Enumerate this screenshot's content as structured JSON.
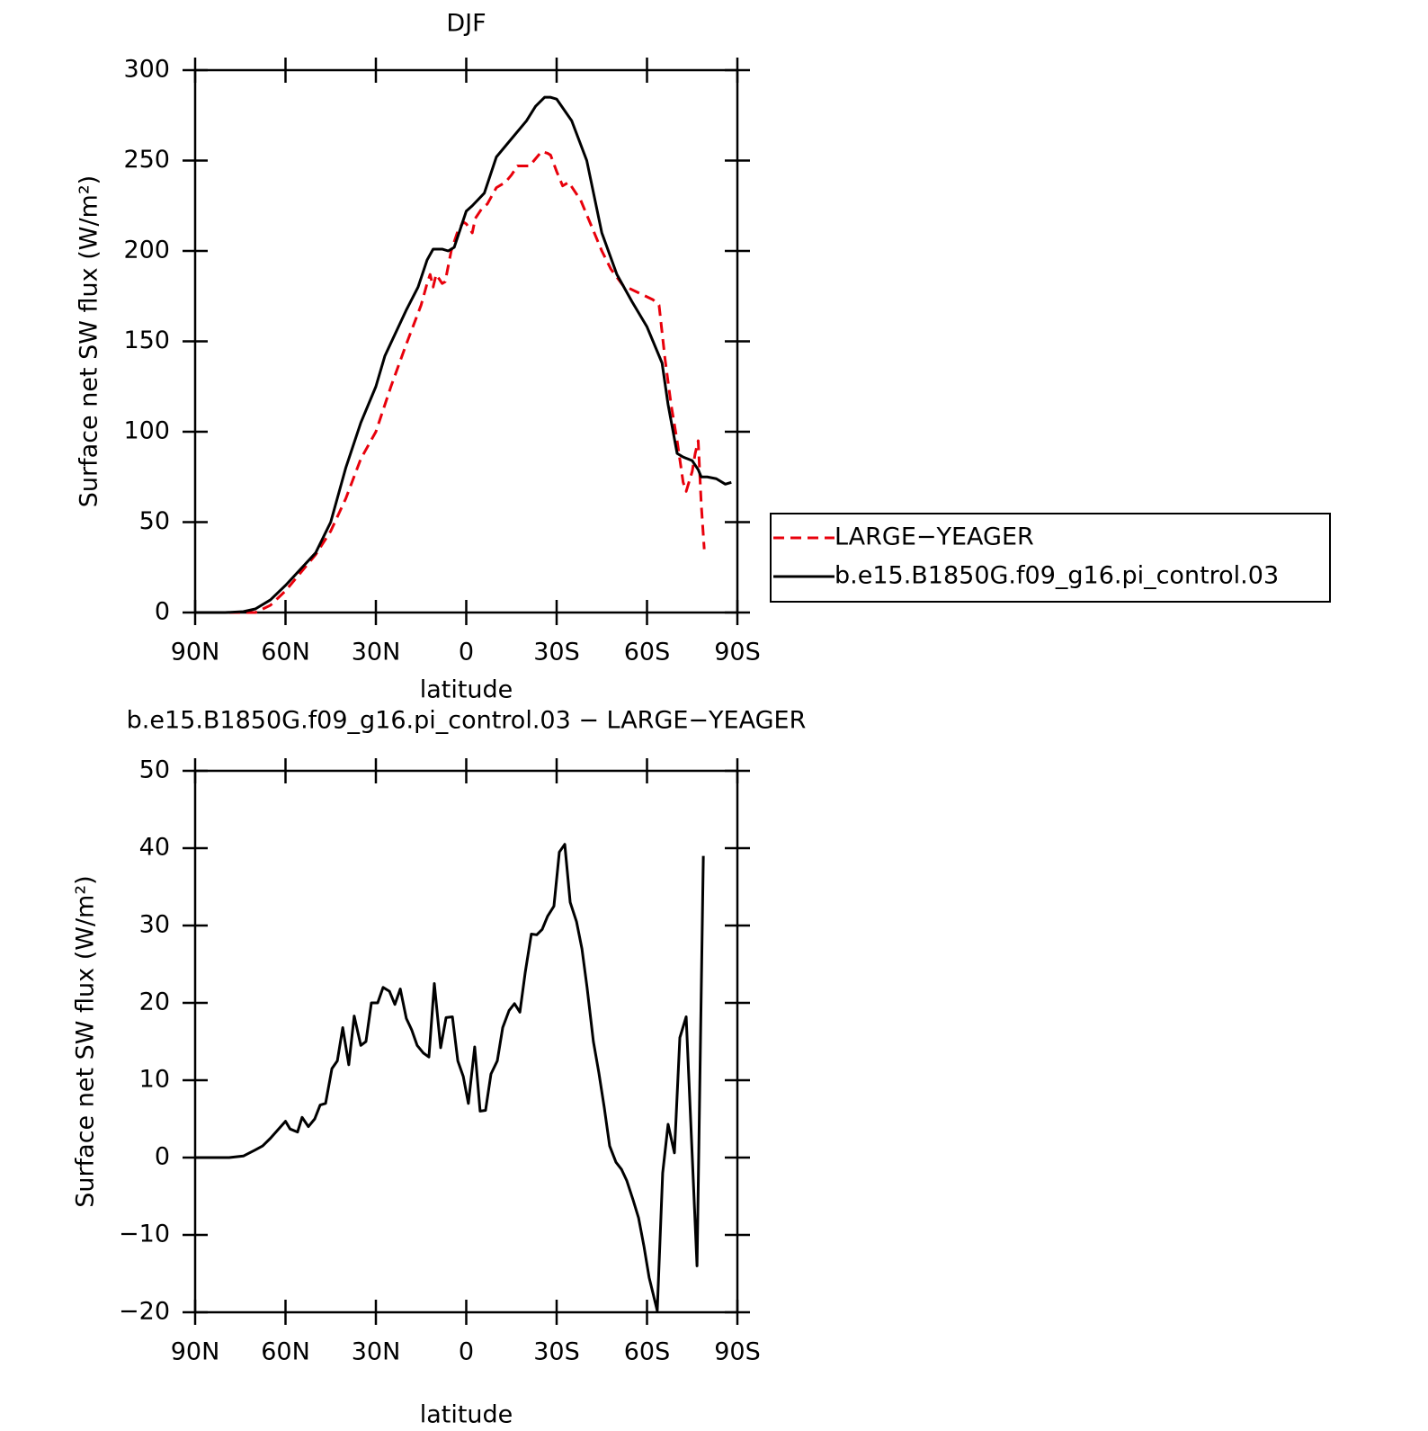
{
  "chart_data": [
    {
      "type": "line",
      "title": "DJF",
      "xlabel": "latitude",
      "ylabel": "Surface net SW flux (W/m²)",
      "xlim": [
        90,
        -90
      ],
      "ylim": [
        0,
        300
      ],
      "xticks": [
        {
          "value": 90,
          "label": "90N"
        },
        {
          "value": 60,
          "label": "60N"
        },
        {
          "value": 30,
          "label": "30N"
        },
        0,
        {
          "value": -30,
          "label": "30S"
        },
        {
          "value": -60,
          "label": "60S"
        },
        {
          "value": -90,
          "label": "90S"
        }
      ],
      "yticks": [
        0,
        50,
        100,
        150,
        200,
        250,
        300
      ],
      "legend": "right",
      "series": [
        {
          "name": "LARGE−YEAGER",
          "color": "#e8000b",
          "dash": true,
          "x": [
            90,
            80,
            70,
            65,
            60,
            55,
            50,
            45,
            40,
            35,
            30,
            25,
            20,
            15,
            13,
            12,
            11,
            10,
            8,
            7,
            5,
            3,
            1,
            0,
            -2,
            -3,
            -5,
            -7,
            -10,
            -13,
            -15,
            -17,
            -19,
            -21,
            -23,
            -25,
            -27,
            -28,
            -30,
            -32,
            -34,
            -38,
            -42,
            -45,
            -48,
            -52,
            -57,
            -62,
            -64,
            -66,
            -68,
            -70,
            -72,
            -73,
            -75,
            -76,
            -77,
            -78,
            -79
          ],
          "values": [
            0,
            0,
            0,
            4,
            12,
            22,
            32,
            45,
            63,
            85,
            100,
            125,
            148,
            170,
            182,
            187,
            180,
            187,
            182,
            183,
            200,
            210,
            216,
            215,
            210,
            218,
            223,
            226,
            235,
            238,
            242,
            247,
            247,
            247,
            251,
            255,
            254,
            253,
            244,
            236,
            238,
            228,
            212,
            200,
            190,
            181,
            177,
            173,
            170,
            140,
            115,
            95,
            72,
            67,
            78,
            88,
            95,
            60,
            35
          ]
        },
        {
          "name": "b.e15.B1850G.f09_g16.pi_control.03",
          "color": "#000000",
          "x": [
            90,
            80,
            74,
            70,
            65,
            60,
            55,
            50,
            45,
            40,
            35,
            30,
            27,
            20,
            16,
            13,
            11,
            8,
            6,
            4,
            2,
            0,
            -2,
            -6,
            -10,
            -15,
            -20,
            -23,
            -26,
            -28,
            -30,
            -35,
            -40,
            -45,
            -50,
            -55,
            -60,
            -62,
            -65,
            -67,
            -70,
            -72,
            -75,
            -77,
            -78,
            -80,
            -83,
            -86,
            -88
          ],
          "values": [
            0,
            0,
            0.5,
            2,
            7,
            15,
            24,
            33,
            50,
            80,
            105,
            125,
            142,
            167,
            180,
            195,
            201,
            201,
            200,
            202,
            212,
            222,
            225,
            232,
            252,
            262,
            272,
            280,
            285,
            285,
            284,
            272,
            250,
            210,
            187,
            172,
            158,
            150,
            138,
            115,
            88,
            86,
            84,
            79,
            75,
            75,
            74,
            71,
            72
          ]
        }
      ]
    },
    {
      "type": "line",
      "title": "b.e15.B1850G.f09_g16.pi_control.03 − LARGE−YEAGER",
      "xlabel": "latitude",
      "ylabel": "Surface net SW flux (W/m²)",
      "xlim": [
        90,
        -90
      ],
      "ylim": [
        -20,
        50
      ],
      "xticks": [
        {
          "value": 90,
          "label": "90N"
        },
        {
          "value": 60,
          "label": "60N"
        },
        {
          "value": 30,
          "label": "30N"
        },
        0,
        {
          "value": -30,
          "label": "30S"
        },
        {
          "value": -60,
          "label": "60S"
        },
        {
          "value": -90,
          "label": "90S"
        }
      ],
      "yticks": [
        {
          "value": -20,
          "label": "−20"
        },
        {
          "value": -10,
          "label": "−10"
        },
        0,
        10,
        20,
        30,
        40,
        50
      ],
      "series": [
        {
          "color": "#000000",
          "x": [
            90,
            78.7,
            74,
            70,
            67.6,
            65,
            60,
            58.5,
            56,
            54.5,
            52.4,
            50.3,
            48.5,
            46.7,
            44.6,
            42.8,
            41,
            39,
            37.2,
            35,
            33.3,
            31.5,
            29.4,
            27.6,
            25.5,
            23.7,
            21.9,
            19.9,
            18.1,
            16.3,
            14.2,
            12.4,
            10.6,
            8.5,
            6.7,
            4.6,
            2.8,
            1,
            -0.7,
            -2.8,
            -4.6,
            -6.4,
            -8.2,
            -10.3,
            -12.1,
            -14.2,
            -16,
            -17.8,
            -19.6,
            -21.6,
            -23.4,
            -25.2,
            -27,
            -29.1,
            -30.9,
            -32.7,
            -34.5,
            -36.6,
            -38.4,
            -40.1,
            -42.2,
            -44,
            -45.8,
            -47.6,
            -49.7,
            -51.5,
            -53.3,
            -55.4,
            -57.2,
            -59,
            -60.7,
            -63.4,
            -65.2,
            -67,
            -69.1,
            -70.9,
            -73,
            -76.6,
            -78.7
          ],
          "values": [
            0,
            0,
            0.2,
            1,
            1.5,
            2.5,
            4.7,
            3.7,
            3.3,
            5.2,
            4,
            5,
            6.8,
            7,
            11.5,
            12.5,
            16.8,
            12,
            18.3,
            14.5,
            15,
            20,
            20,
            22,
            21.5,
            19.8,
            21.8,
            18,
            16.5,
            14.5,
            13.5,
            13,
            22.5,
            14.2,
            18.1,
            18.2,
            12.5,
            10.5,
            7,
            14.3,
            6,
            6.1,
            10.8,
            12.5,
            16.8,
            19,
            19.9,
            18.8,
            24,
            28.9,
            28.8,
            29.5,
            31.2,
            32.5,
            39.5,
            40.5,
            33,
            30.5,
            27,
            22,
            15,
            11,
            6.5,
            1.5,
            -0.6,
            -1.5,
            -3,
            -5.5,
            -7.8,
            -11.5,
            -15.5,
            -19.8,
            -2,
            4.3,
            0.6,
            15.5,
            18.2,
            -14,
            39
          ]
        }
      ]
    }
  ]
}
